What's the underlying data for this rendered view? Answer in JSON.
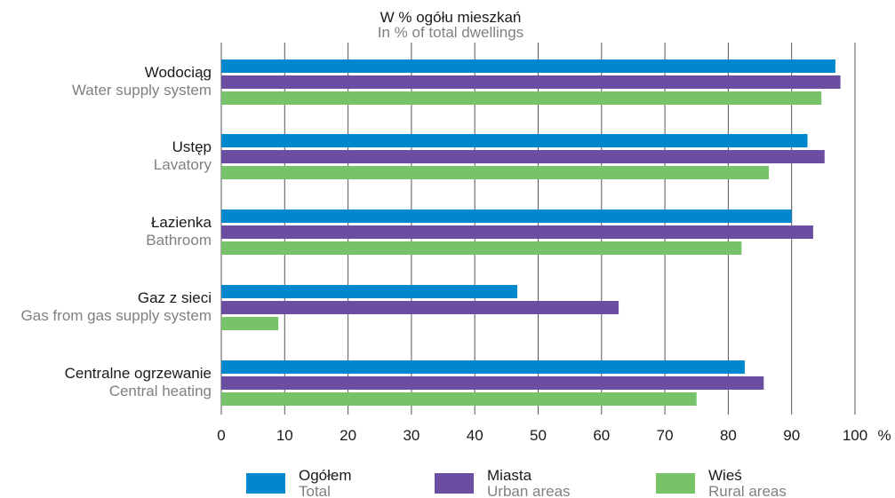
{
  "chart_data": {
    "type": "bar",
    "orientation": "horizontal",
    "title": "W % ogółu mieszkań",
    "subtitle": "In % of total dwellings",
    "categories": [
      {
        "pl": "Wodociąg",
        "en": "Water supply system"
      },
      {
        "pl": "Ustęp",
        "en": "Lavatory"
      },
      {
        "pl": "Łazienka",
        "en": "Bathroom"
      },
      {
        "pl": "Gaz z sieci",
        "en": "Gas from gas supply system"
      },
      {
        "pl": "Centralne ogrzewanie",
        "en": "Central heating"
      }
    ],
    "series": [
      {
        "name": "Ogółem",
        "name_en": "Total",
        "color": "#0087cd",
        "values": [
          96.9,
          92.5,
          90.0,
          46.7,
          82.6
        ]
      },
      {
        "name": "Miasta",
        "name_en": "Urban areas",
        "color": "#6b4ea2",
        "values": [
          97.7,
          95.2,
          93.4,
          62.7,
          85.6
        ]
      },
      {
        "name": "Wieś",
        "name_en": "Rural areas",
        "color": "#78c36a",
        "values": [
          94.7,
          86.4,
          82.1,
          9.0,
          75.0
        ]
      }
    ],
    "xlim": [
      0,
      100
    ],
    "xticks": [
      0,
      10,
      20,
      30,
      40,
      50,
      60,
      70,
      80,
      90,
      100
    ],
    "x_unit": "%",
    "grid": true,
    "legend_position": "bottom"
  }
}
